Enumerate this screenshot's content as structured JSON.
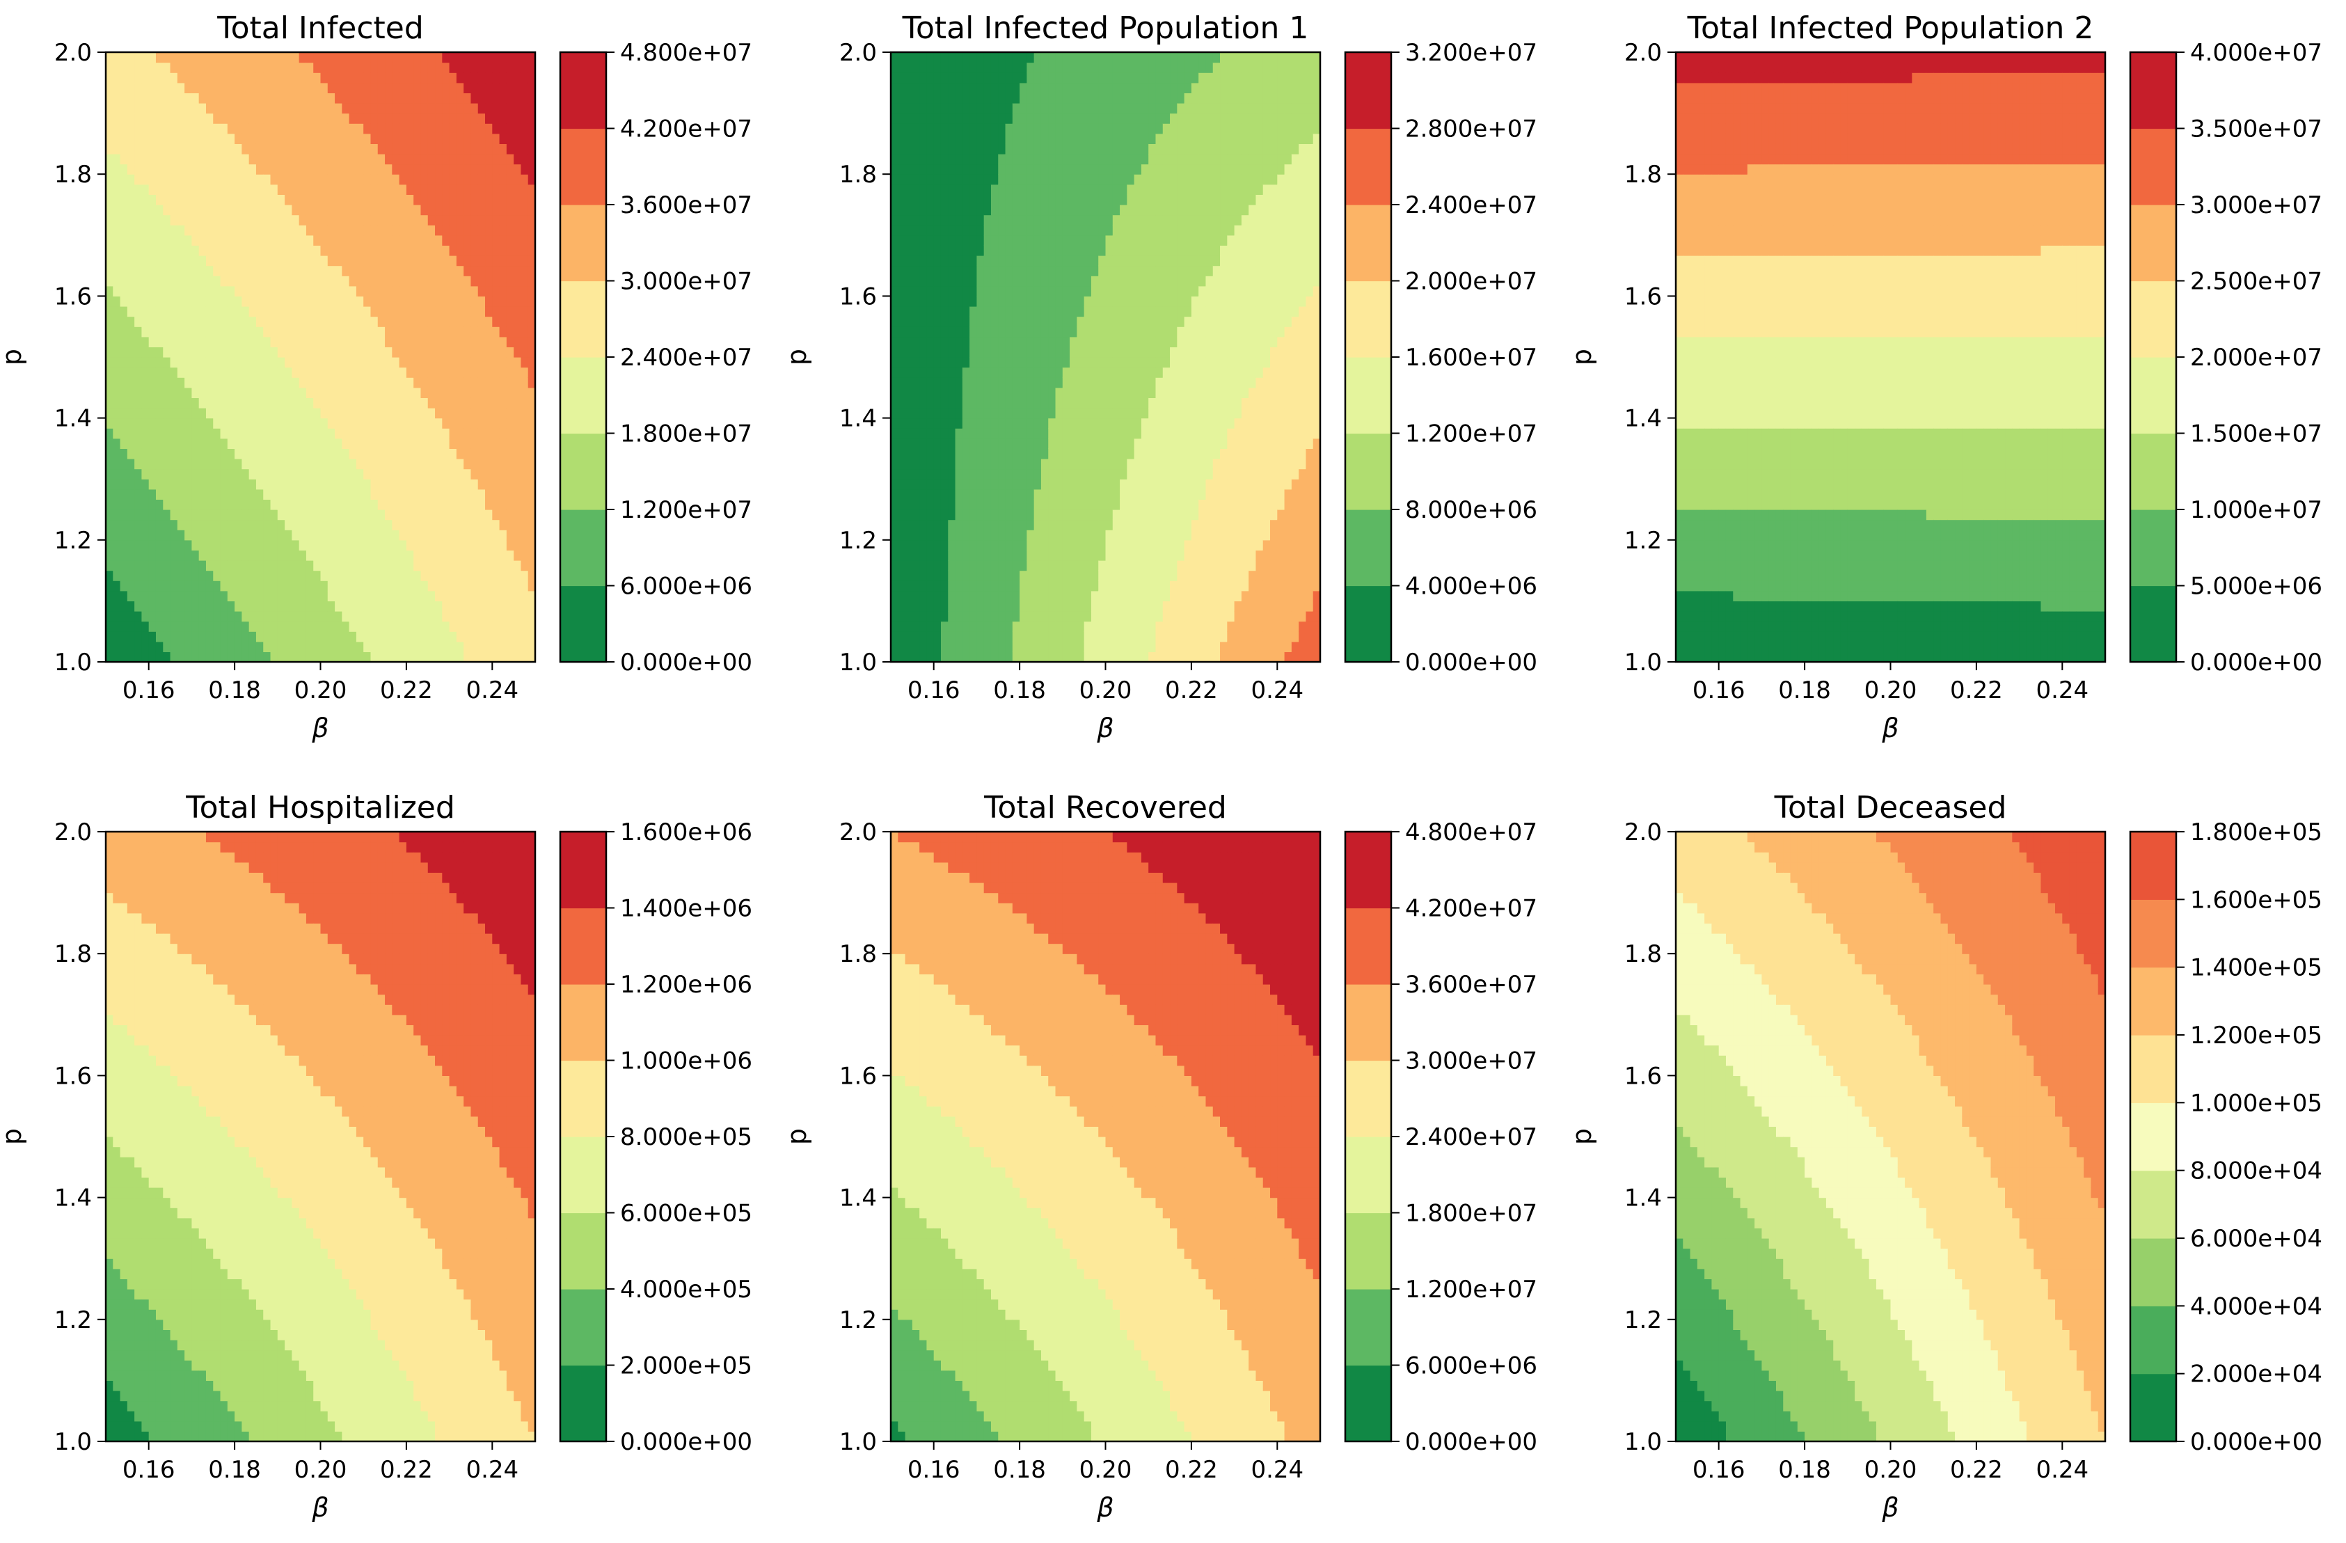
{
  "figure": {
    "panel_count": 6,
    "layout": "2 rows x 3 columns"
  },
  "chart_data": [
    {
      "type": "heatmap",
      "title": "Total Infected",
      "xlabel": "β",
      "ylabel": "p",
      "xlim": [
        0.15,
        0.25
      ],
      "ylim": [
        1.0,
        2.0
      ],
      "x_ticks": [
        "0.16",
        "0.18",
        "0.20",
        "0.22",
        "0.24"
      ],
      "y_ticks": [
        "1.0",
        "1.2",
        "1.4",
        "1.6",
        "1.8",
        "2.0"
      ],
      "colorbar_levels": [
        "0.000e+00",
        "6.000e+06",
        "1.200e+07",
        "1.800e+07",
        "2.400e+07",
        "3.000e+07",
        "3.600e+07",
        "4.200e+07",
        "4.800e+07"
      ],
      "colors": [
        "#118845",
        "#5db863",
        "#b0dd70",
        "#e4f49c",
        "#fde99a",
        "#fcb466",
        "#f1683f",
        "#c61e2a"
      ],
      "x": [
        0.15,
        0.25
      ],
      "y": [
        1.0,
        2.0
      ],
      "z": [
        [
          2000000.0,
          28000000.0
        ],
        [
          28000000.0,
          46000000.0
        ]
      ]
    },
    {
      "type": "heatmap",
      "title": "Total Infected Population 1",
      "xlabel": "β",
      "ylabel": "p",
      "xlim": [
        0.15,
        0.25
      ],
      "ylim": [
        1.0,
        2.0
      ],
      "x_ticks": [
        "0.16",
        "0.18",
        "0.20",
        "0.22",
        "0.24"
      ],
      "y_ticks": [
        "1.0",
        "1.2",
        "1.4",
        "1.6",
        "1.8",
        "2.0"
      ],
      "colorbar_levels": [
        "0.000e+00",
        "4.000e+06",
        "8.000e+06",
        "1.200e+07",
        "1.600e+07",
        "2.000e+07",
        "2.400e+07",
        "2.800e+07",
        "3.200e+07"
      ],
      "colors": [
        "#118845",
        "#5db863",
        "#b0dd70",
        "#e4f49c",
        "#fde99a",
        "#fcb466",
        "#f1683f",
        "#c61e2a"
      ],
      "x": [
        0.15,
        0.25
      ],
      "y": [
        1.0,
        2.0
      ],
      "z": [
        [
          1000000.0,
          26000000.0
        ],
        [
          1000000.0,
          10000000.0
        ]
      ]
    },
    {
      "type": "heatmap",
      "title": "Total Infected Population 2",
      "xlabel": "β",
      "ylabel": "p",
      "xlim": [
        0.15,
        0.25
      ],
      "ylim": [
        1.0,
        2.0
      ],
      "x_ticks": [
        "0.16",
        "0.18",
        "0.20",
        "0.22",
        "0.24"
      ],
      "y_ticks": [
        "1.0",
        "1.2",
        "1.4",
        "1.6",
        "1.8",
        "2.0"
      ],
      "colorbar_levels": [
        "0.000e+00",
        "5.000e+06",
        "1.000e+07",
        "1.500e+07",
        "2.000e+07",
        "2.500e+07",
        "3.000e+07",
        "3.500e+07",
        "4.000e+07"
      ],
      "colors": [
        "#118845",
        "#5db863",
        "#b0dd70",
        "#e4f49c",
        "#fde99a",
        "#fcb466",
        "#f1683f",
        "#c61e2a"
      ],
      "x": [
        0.15,
        0.25
      ],
      "y": [
        1.0,
        2.0
      ],
      "z": [
        [
          1000000.0,
          2000000.0
        ],
        [
          37000000.0,
          36000000.0
        ]
      ]
    },
    {
      "type": "heatmap",
      "title": "Total Hospitalized",
      "xlabel": "β",
      "ylabel": "p",
      "xlim": [
        0.15,
        0.25
      ],
      "ylim": [
        1.0,
        2.0
      ],
      "x_ticks": [
        "0.16",
        "0.18",
        "0.20",
        "0.22",
        "0.24"
      ],
      "y_ticks": [
        "1.0",
        "1.2",
        "1.4",
        "1.6",
        "1.8",
        "2.0"
      ],
      "colorbar_levels": [
        "0.000e+00",
        "2.000e+05",
        "4.000e+05",
        "6.000e+05",
        "8.000e+05",
        "1.000e+06",
        "1.200e+06",
        "1.400e+06",
        "1.600e+06"
      ],
      "colors": [
        "#118845",
        "#5db863",
        "#b0dd70",
        "#e4f49c",
        "#fde99a",
        "#fcb466",
        "#f1683f",
        "#c61e2a"
      ],
      "x": [
        0.15,
        0.25
      ],
      "y": [
        1.0,
        2.0
      ],
      "z": [
        [
          100000.0,
          1000000.0
        ],
        [
          1100000.0,
          1550000.0
        ]
      ]
    },
    {
      "type": "heatmap",
      "title": "Total Recovered",
      "xlabel": "β",
      "ylabel": "p",
      "xlim": [
        0.15,
        0.25
      ],
      "ylim": [
        1.0,
        2.0
      ],
      "x_ticks": [
        "0.16",
        "0.18",
        "0.20",
        "0.22",
        "0.24"
      ],
      "y_ticks": [
        "1.0",
        "1.2",
        "1.4",
        "1.6",
        "1.8",
        "2.0"
      ],
      "colorbar_levels": [
        "0.000e+00",
        "6.000e+06",
        "1.200e+07",
        "1.800e+07",
        "2.400e+07",
        "3.000e+07",
        "3.600e+07",
        "4.200e+07",
        "4.800e+07"
      ],
      "colors": [
        "#118845",
        "#5db863",
        "#b0dd70",
        "#e4f49c",
        "#fde99a",
        "#fcb466",
        "#f1683f",
        "#c61e2a"
      ],
      "x": [
        0.15,
        0.25
      ],
      "y": [
        1.0,
        2.0
      ],
      "z": [
        [
          5000000.0,
          32000000.0
        ],
        [
          36000000.0,
          48000000.0
        ]
      ]
    },
    {
      "type": "heatmap",
      "title": "Total Deceased",
      "xlabel": "β",
      "ylabel": "p",
      "xlim": [
        0.15,
        0.25
      ],
      "ylim": [
        1.0,
        2.0
      ],
      "x_ticks": [
        "0.16",
        "0.18",
        "0.20",
        "0.22",
        "0.24"
      ],
      "y_ticks": [
        "1.0",
        "1.2",
        "1.4",
        "1.6",
        "1.8",
        "2.0"
      ],
      "colorbar_levels": [
        "0.000e+00",
        "2.000e+04",
        "4.000e+04",
        "6.000e+04",
        "8.000e+04",
        "1.000e+05",
        "1.200e+05",
        "1.400e+05",
        "1.600e+05",
        "1.800e+05"
      ],
      "colors": [
        "#118845",
        "#4aad5b",
        "#97d06a",
        "#cfe98a",
        "#f7fbbd",
        "#fee294",
        "#fdb96b",
        "#f68a4f",
        "#e95538",
        "#c61e2a"
      ],
      "x": [
        0.15,
        0.25
      ],
      "y": [
        1.0,
        2.0
      ],
      "z": [
        [
          5000.0,
          120000.0
        ],
        [
          110000.0,
          175000.0
        ]
      ]
    }
  ]
}
